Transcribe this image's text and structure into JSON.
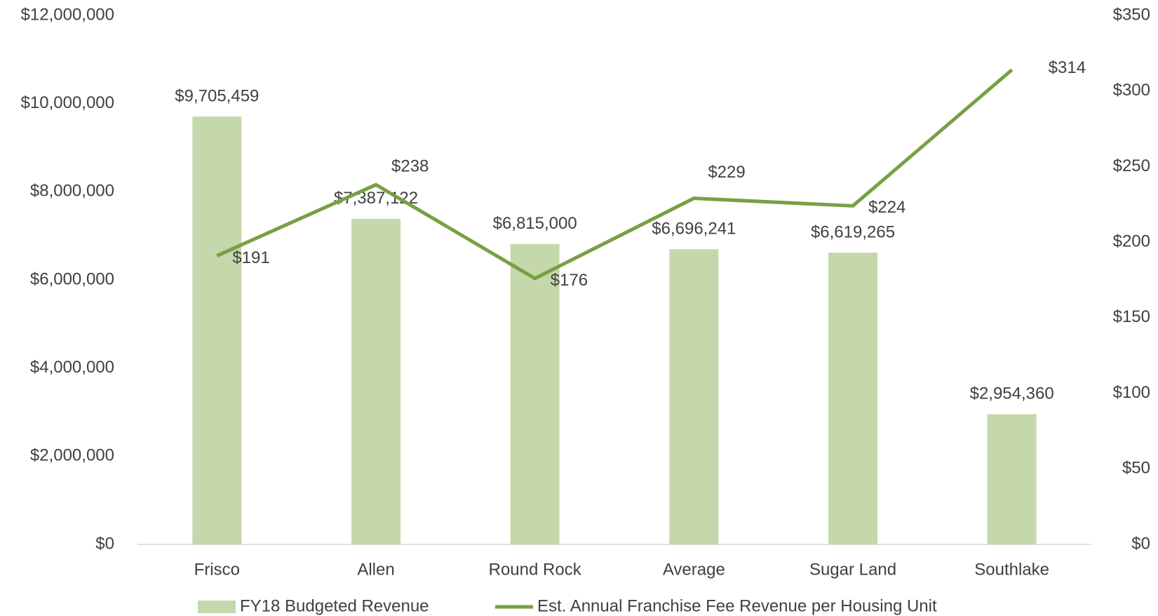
{
  "chart_data": {
    "type": "bar_line",
    "categories": [
      "Frisco",
      "Allen",
      "Round Rock",
      "Average",
      "Sugar Land",
      "Southlake"
    ],
    "series": [
      {
        "name": "FY18 Budgeted Revenue",
        "type": "bar",
        "color": "#c5d8ab",
        "values": [
          9705459,
          7387122,
          6815000,
          6696241,
          6619265,
          2954360
        ],
        "value_labels": [
          "$9,705,459",
          "$7,387,122",
          "$6,815,000",
          "$6,696,241",
          "$6,619,265",
          "$2,954,360"
        ]
      },
      {
        "name": "Est. Annual Franchise Fee Revenue per Housing Unit",
        "type": "line",
        "axis": "y2",
        "color": "#77a043",
        "values": [
          191,
          238,
          176,
          229,
          224,
          314
        ],
        "value_labels": [
          "$191",
          "$238",
          "$176",
          "$229",
          "$224",
          "$314"
        ]
      }
    ],
    "ylim": [
      0,
      12000000
    ],
    "yticks": [
      {
        "value": 0,
        "label": "$0"
      },
      {
        "value": 2000000,
        "label": "$2,000,000"
      },
      {
        "value": 4000000,
        "label": "$4,000,000"
      },
      {
        "value": 6000000,
        "label": "$6,000,000"
      },
      {
        "value": 8000000,
        "label": "$8,000,000"
      },
      {
        "value": 10000000,
        "label": "$10,000,000"
      },
      {
        "value": 12000000,
        "label": "$12,000,000"
      }
    ],
    "y2lim": [
      0,
      350
    ],
    "y2ticks": [
      {
        "value": 0,
        "label": "$0"
      },
      {
        "value": 50,
        "label": "$50"
      },
      {
        "value": 100,
        "label": "$100"
      },
      {
        "value": 150,
        "label": "$150"
      },
      {
        "value": 200,
        "label": "$200"
      },
      {
        "value": 250,
        "label": "$250"
      },
      {
        "value": 300,
        "label": "$300"
      },
      {
        "value": 350,
        "label": "$350"
      }
    ],
    "legend": "bottom"
  }
}
